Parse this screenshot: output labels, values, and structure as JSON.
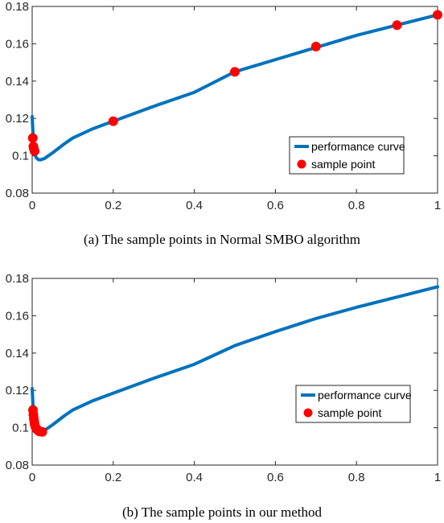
{
  "chart_data": [
    {
      "type": "line",
      "caption": "(a)  The sample points in Normal SMBO algorithm",
      "xlim": [
        0,
        1
      ],
      "ylim": [
        0.08,
        0.18
      ],
      "x_ticks": [
        "0",
        "0.2",
        "0.4",
        "0.6",
        "0.8",
        "1"
      ],
      "y_ticks": [
        "0.08",
        "0.1",
        "0.12",
        "0.14",
        "0.16",
        "0.18"
      ],
      "grid": false,
      "legend_position": "right",
      "legend": [
        "performance curve",
        "sample point"
      ],
      "colors": {
        "curve": "#0072BD",
        "points": "#FF0000"
      },
      "series": [
        {
          "name": "performance curve",
          "kind": "line",
          "x": [
            0,
            0.002,
            0.004,
            0.006,
            0.008,
            0.01,
            0.015,
            0.02,
            0.03,
            0.05,
            0.08,
            0.1,
            0.15,
            0.2,
            0.3,
            0.4,
            0.5,
            0.6,
            0.7,
            0.8,
            0.9,
            1.0
          ],
          "y": [
            0.121,
            0.112,
            0.106,
            0.102,
            0.1,
            0.099,
            0.098,
            0.0978,
            0.0985,
            0.1015,
            0.1065,
            0.1095,
            0.1145,
            0.1185,
            0.1265,
            0.134,
            0.145,
            0.1515,
            0.158,
            0.1645,
            0.17,
            0.1755
          ]
        },
        {
          "name": "sample point",
          "kind": "scatter",
          "x": [
            0.0015,
            0.003,
            0.004,
            0.006,
            0.2,
            0.5,
            0.7,
            0.9,
            1.0
          ],
          "y": [
            0.1095,
            0.105,
            0.104,
            0.1025,
            0.1185,
            0.145,
            0.1585,
            0.17,
            0.1755
          ]
        }
      ]
    },
    {
      "type": "line",
      "caption": "(b)  The sample points in our method",
      "xlim": [
        0,
        1
      ],
      "ylim": [
        0.08,
        0.18
      ],
      "x_ticks": [
        "0",
        "0.2",
        "0.4",
        "0.6",
        "0.8",
        "1"
      ],
      "y_ticks": [
        "0.08",
        "0.1",
        "0.12",
        "0.14",
        "0.16",
        "0.18"
      ],
      "grid": false,
      "legend_position": "right",
      "legend": [
        "performance curve",
        "sample point"
      ],
      "colors": {
        "curve": "#0072BD",
        "points": "#FF0000"
      },
      "series": [
        {
          "name": "performance curve",
          "kind": "line",
          "x": [
            0,
            0.002,
            0.004,
            0.006,
            0.008,
            0.01,
            0.015,
            0.02,
            0.03,
            0.05,
            0.08,
            0.1,
            0.15,
            0.2,
            0.3,
            0.4,
            0.5,
            0.6,
            0.7,
            0.8,
            0.9,
            1.0
          ],
          "y": [
            0.121,
            0.112,
            0.106,
            0.102,
            0.1,
            0.099,
            0.098,
            0.0978,
            0.0985,
            0.1015,
            0.1065,
            0.1095,
            0.1145,
            0.1185,
            0.1265,
            0.134,
            0.144,
            0.1515,
            0.1585,
            0.1645,
            0.17,
            0.1755
          ]
        },
        {
          "name": "sample point",
          "kind": "scatter",
          "x": [
            0.002,
            0.003,
            0.004,
            0.005,
            0.006,
            0.008,
            0.01,
            0.012,
            0.015,
            0.018,
            0.02,
            0.025
          ],
          "y": [
            0.1095,
            0.107,
            0.105,
            0.1035,
            0.102,
            0.1005,
            0.0995,
            0.099,
            0.0985,
            0.098,
            0.098,
            0.0978
          ]
        }
      ]
    }
  ]
}
